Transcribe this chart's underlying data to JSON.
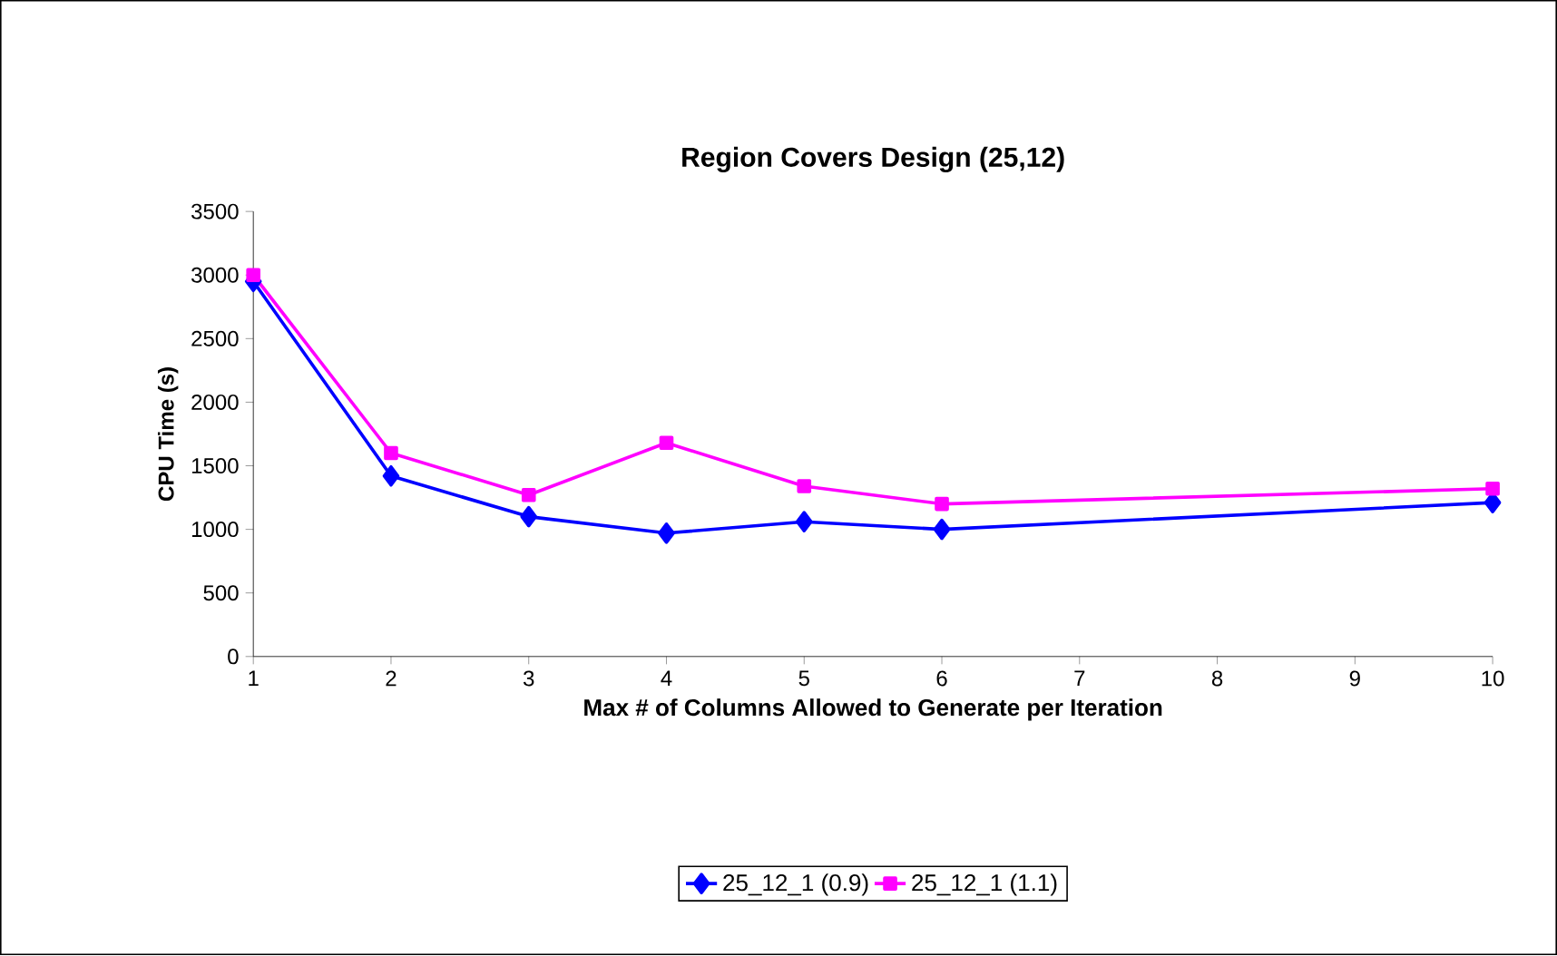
{
  "chart_data": {
    "type": "line",
    "title": "Region Covers Design (25,12)",
    "xlabel": "Max # of Columns Allowed to Generate per Iteration",
    "ylabel": "CPU Time (s)",
    "x": [
      1,
      2,
      3,
      4,
      5,
      6,
      10
    ],
    "series": [
      {
        "name": "25_12_1 (0.9)",
        "color": "#0000ff",
        "marker": "diamond",
        "values": [
          2950,
          1420,
          1100,
          970,
          1060,
          1000,
          1210
        ]
      },
      {
        "name": "25_12_1 (1.1)",
        "color": "#ff00ff",
        "marker": "square",
        "values": [
          3000,
          1600,
          1270,
          1680,
          1340,
          1200,
          1320
        ]
      }
    ],
    "xlim": [
      1,
      10
    ],
    "xticks": [
      1,
      2,
      3,
      4,
      5,
      6,
      7,
      8,
      9,
      10
    ],
    "ylim": [
      0,
      3500
    ],
    "yticks": [
      0,
      500,
      1000,
      1500,
      2000,
      2500,
      3000,
      3500
    ],
    "grid": false,
    "legend": "bottom"
  }
}
